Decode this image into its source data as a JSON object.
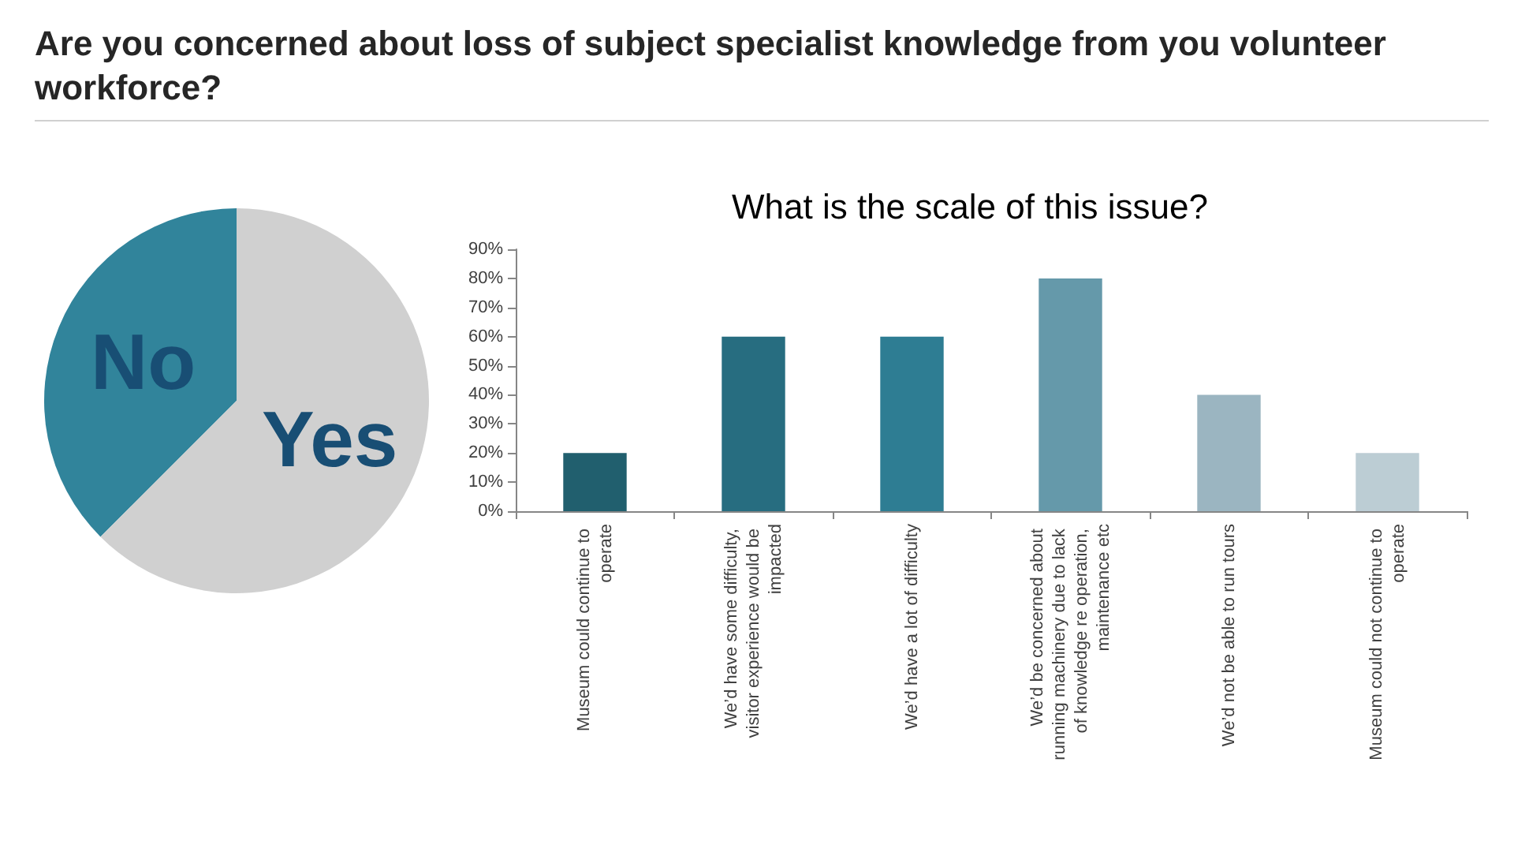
{
  "chart_data": [
    {
      "type": "pie",
      "title": "Are you concerned about loss of subject specialist knowledge from you volunteer workforce?",
      "categories": [
        "No",
        "Yes"
      ],
      "values": [
        37.5,
        62.5
      ],
      "colors": [
        "#31849b",
        "#d0d0d0"
      ],
      "legend": false
    },
    {
      "type": "bar",
      "title": "What is the scale of this issue?",
      "categories": [
        "Museum could continue to operate",
        "We’d have some difficulty, visitor experience would be impacted",
        "We’d have a lot of difficulty",
        "We’d be concerned about running machinery due to lack of knowledge re operation, maintenance etc",
        "We’d not be able to run tours",
        "Museum could not continue to operate"
      ],
      "values": [
        20,
        60,
        60,
        80,
        40,
        20
      ],
      "colors": [
        "#215f6e",
        "#276d80",
        "#2e7d93",
        "#6599aa",
        "#9bb5c1",
        "#bccdd4"
      ],
      "ylim": [
        0,
        90
      ],
      "yticks": [
        {
          "value": 0,
          "label": "0%"
        },
        {
          "value": 10,
          "label": "10%"
        },
        {
          "value": 20,
          "label": "20%"
        },
        {
          "value": 30,
          "label": "30%"
        },
        {
          "value": 40,
          "label": "40%"
        },
        {
          "value": 50,
          "label": "50%"
        },
        {
          "value": 60,
          "label": "60%"
        },
        {
          "value": 70,
          "label": "70%"
        },
        {
          "value": 80,
          "label": "80%"
        },
        {
          "value": 90,
          "label": "90%"
        }
      ],
      "grid": false,
      "legend": false
    }
  ]
}
